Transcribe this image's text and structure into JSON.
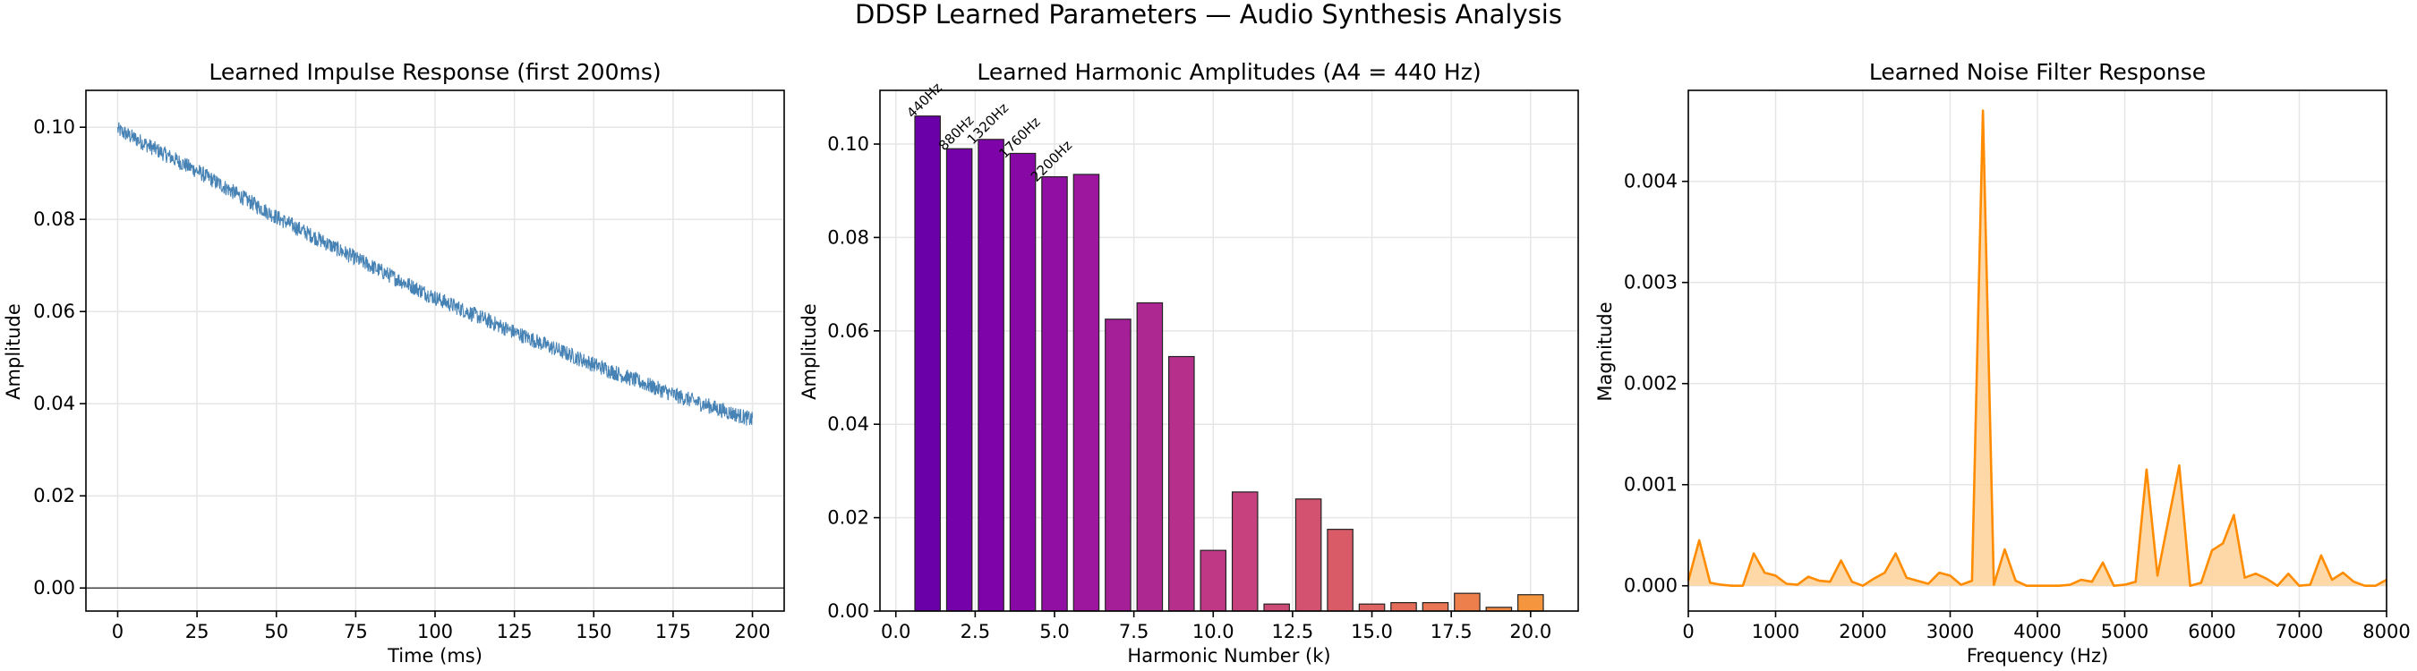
{
  "suptitle": "DDSP Learned Parameters — Audio Synthesis Analysis",
  "colors": {
    "impulse": "#4682b4",
    "noise_line": "#ff8c00",
    "noise_fill": "#ffd199",
    "bar_edge": "#222222",
    "zero_line": "#444444"
  },
  "chart_data": [
    {
      "type": "line",
      "title": "Learned Impulse Response (first 200ms)",
      "xlabel": "Time (ms)",
      "ylabel": "Amplitude",
      "xlim": [
        -10,
        210
      ],
      "ylim": [
        -0.005,
        0.108
      ],
      "xticks": [
        0,
        25,
        50,
        75,
        100,
        125,
        150,
        175,
        200
      ],
      "yticks": [
        0.0,
        0.02,
        0.04,
        0.06,
        0.08,
        0.1
      ],
      "ytick_labels": [
        "0.00",
        "0.02",
        "0.04",
        "0.06",
        "0.08",
        "0.10"
      ],
      "grid": true,
      "reference_line_y": 0,
      "envelope": {
        "x": [
          0,
          25,
          50,
          75,
          100,
          125,
          150,
          175,
          200
        ],
        "y": [
          0.0995,
          0.0905,
          0.0805,
          0.0715,
          0.063,
          0.0555,
          0.0485,
          0.042,
          0.0365
        ]
      },
      "noise_band": 0.0017
    },
    {
      "type": "bar",
      "title": "Learned Harmonic Amplitudes (A4 = 440 Hz)",
      "xlabel": "Harmonic Number (k)",
      "ylabel": "Amplitude",
      "xlim": [
        -0.5,
        21.5
      ],
      "ylim": [
        0,
        0.1115
      ],
      "xticks": [
        0.0,
        2.5,
        5.0,
        7.5,
        10.0,
        12.5,
        15.0,
        17.5,
        20.0
      ],
      "xtick_labels": [
        "0.0",
        "2.5",
        "5.0",
        "7.5",
        "10.0",
        "12.5",
        "15.0",
        "17.5",
        "20.0"
      ],
      "yticks": [
        0.0,
        0.02,
        0.04,
        0.06,
        0.08,
        0.1
      ],
      "ytick_labels": [
        "0.00",
        "0.02",
        "0.04",
        "0.06",
        "0.08",
        "0.10"
      ],
      "grid": true,
      "categories": [
        1,
        2,
        3,
        4,
        5,
        6,
        7,
        8,
        9,
        10,
        11,
        12,
        13,
        14,
        15,
        16,
        17,
        18,
        19,
        20
      ],
      "values": [
        0.106,
        0.099,
        0.101,
        0.098,
        0.093,
        0.0935,
        0.0625,
        0.066,
        0.0545,
        0.013,
        0.0255,
        0.0015,
        0.024,
        0.0175,
        0.0015,
        0.0018,
        0.0018,
        0.0038,
        0.0008,
        0.0035
      ],
      "bar_colors": [
        "#6a00a8",
        "#7401a9",
        "#7e03a8",
        "#8808a6",
        "#920fa3",
        "#9c179e",
        "#a51f99",
        "#ae2892",
        "#b6308b",
        "#be3885",
        "#c6417d",
        "#cc4a76",
        "#d35270",
        "#d95b68",
        "#de6363",
        "#e46c5b",
        "#e97654",
        "#ed7f4d",
        "#f18a45",
        "#f5953e"
      ],
      "annotations": [
        {
          "k": 1,
          "label": "440Hz"
        },
        {
          "k": 2,
          "label": "880Hz"
        },
        {
          "k": 3,
          "label": "1320Hz"
        },
        {
          "k": 4,
          "label": "1760Hz"
        },
        {
          "k": 5,
          "label": "2200Hz"
        }
      ]
    },
    {
      "type": "area",
      "title": "Learned Noise Filter Response",
      "xlabel": "Frequency (Hz)",
      "ylabel": "Magnitude",
      "xlim": [
        0,
        8000
      ],
      "ylim": [
        -0.00025,
        0.0049
      ],
      "xticks": [
        0,
        1000,
        2000,
        3000,
        4000,
        5000,
        6000,
        7000,
        8000
      ],
      "yticks": [
        0.0,
        0.001,
        0.002,
        0.003,
        0.004
      ],
      "ytick_labels": [
        "0.000",
        "0.001",
        "0.002",
        "0.003",
        "0.004"
      ],
      "grid": true,
      "x": [
        0,
        125,
        250,
        375,
        500,
        625,
        750,
        875,
        1000,
        1125,
        1250,
        1375,
        1500,
        1625,
        1750,
        1875,
        2000,
        2125,
        2250,
        2375,
        2500,
        2625,
        2750,
        2875,
        3000,
        3125,
        3250,
        3375,
        3500,
        3625,
        3750,
        3875,
        4000,
        4125,
        4250,
        4375,
        4500,
        4625,
        4750,
        4875,
        5000,
        5125,
        5250,
        5375,
        5500,
        5625,
        5750,
        5875,
        6000,
        6125,
        6250,
        6375,
        6500,
        6625,
        6750,
        6875,
        7000,
        7125,
        7250,
        7375,
        7500,
        7625,
        7750,
        7875,
        8000
      ],
      "y": [
        5e-05,
        0.00045,
        3e-05,
        1e-05,
        0.0,
        0.0,
        0.00032,
        0.00013,
        0.0001,
        2e-05,
        1e-05,
        9e-05,
        5e-05,
        4e-05,
        0.00025,
        4e-05,
        0.0,
        7e-05,
        0.00013,
        0.00032,
        8e-05,
        5e-05,
        2e-05,
        0.00013,
        0.0001,
        1e-05,
        5e-05,
        0.0047,
        1e-05,
        0.00036,
        5e-05,
        0.0,
        0.0,
        0.0,
        0.0,
        1e-05,
        6e-05,
        4e-05,
        0.00023,
        0.0,
        1e-05,
        4e-05,
        0.00115,
        0.0001,
        0.00065,
        0.00119,
        0.0,
        3e-05,
        0.00035,
        0.00042,
        0.0007,
        8e-05,
        0.00012,
        7e-05,
        0.0,
        0.00012,
        0.0,
        1e-05,
        0.0003,
        6e-05,
        0.00013,
        4e-05,
        0.0,
        0.0,
        6e-05
      ]
    }
  ]
}
